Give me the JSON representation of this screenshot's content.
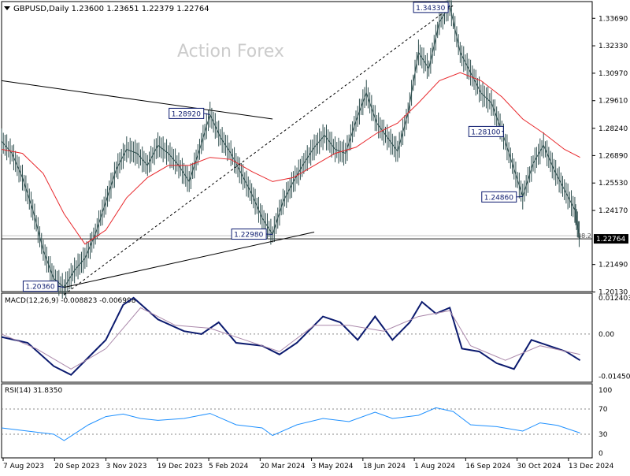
{
  "chart_data": [
    {
      "type": "candlestick",
      "panel": "price",
      "header": "GBPUSD,Daily  1.23600 1.23651 1.22379 1.22764",
      "watermark": "Action Forex",
      "ylim": [
        1.2015,
        1.3452
      ],
      "y_ticks": [
        "1.33690",
        "1.32330",
        "1.30970",
        "1.29610",
        "1.28240",
        "1.26890",
        "1.25530",
        "1.24170",
        "1.22764",
        "1.21490",
        "1.20130"
      ],
      "current_price": "1.22764",
      "fib_label": "38.2",
      "series": [
        {
          "name": "price",
          "color": "#2f4f4f"
        },
        {
          "name": "moving-average",
          "color": "#e8272b"
        }
      ],
      "price_path": [
        [
          0,
          1.276
        ],
        [
          6,
          1.27
        ],
        [
          12,
          1.258
        ],
        [
          18,
          1.242
        ],
        [
          24,
          1.222
        ],
        [
          30,
          1.208
        ],
        [
          36,
          1.2036
        ],
        [
          42,
          1.212
        ],
        [
          48,
          1.218
        ],
        [
          54,
          1.23
        ],
        [
          60,
          1.246
        ],
        [
          66,
          1.262
        ],
        [
          72,
          1.272
        ],
        [
          78,
          1.27
        ],
        [
          84,
          1.264
        ],
        [
          90,
          1.274
        ],
        [
          96,
          1.27
        ],
        [
          102,
          1.264
        ],
        [
          108,
          1.256
        ],
        [
          114,
          1.272
        ],
        [
          120,
          1.2892
        ],
        [
          126,
          1.278
        ],
        [
          132,
          1.27
        ],
        [
          138,
          1.26
        ],
        [
          144,
          1.25
        ],
        [
          150,
          1.238
        ],
        [
          156,
          1.2298
        ],
        [
          162,
          1.246
        ],
        [
          168,
          1.256
        ],
        [
          174,
          1.265
        ],
        [
          180,
          1.273
        ],
        [
          186,
          1.279
        ],
        [
          192,
          1.272
        ],
        [
          198,
          1.27
        ],
        [
          204,
          1.286
        ],
        [
          210,
          1.3
        ],
        [
          216,
          1.285
        ],
        [
          222,
          1.278
        ],
        [
          228,
          1.271
        ],
        [
          234,
          1.29
        ],
        [
          240,
          1.32
        ],
        [
          246,
          1.312
        ],
        [
          252,
          1.335
        ],
        [
          258,
          1.3433
        ],
        [
          264,
          1.32
        ],
        [
          270,
          1.31
        ],
        [
          276,
          1.3
        ],
        [
          282,
          1.295
        ],
        [
          288,
          1.281
        ],
        [
          294,
          1.265
        ],
        [
          300,
          1.2486
        ],
        [
          306,
          1.265
        ],
        [
          312,
          1.274
        ],
        [
          318,
          1.262
        ],
        [
          324,
          1.252
        ],
        [
          330,
          1.242
        ],
        [
          333,
          1.2276
        ]
      ],
      "ma_path": [
        [
          0,
          1.272
        ],
        [
          12,
          1.27
        ],
        [
          24,
          1.26
        ],
        [
          36,
          1.24
        ],
        [
          48,
          1.225
        ],
        [
          60,
          1.232
        ],
        [
          72,
          1.248
        ],
        [
          84,
          1.258
        ],
        [
          96,
          1.264
        ],
        [
          108,
          1.264
        ],
        [
          120,
          1.268
        ],
        [
          132,
          1.267
        ],
        [
          144,
          1.261
        ],
        [
          156,
          1.256
        ],
        [
          168,
          1.258
        ],
        [
          180,
          1.264
        ],
        [
          192,
          1.27
        ],
        [
          204,
          1.273
        ],
        [
          216,
          1.28
        ],
        [
          228,
          1.285
        ],
        [
          240,
          1.295
        ],
        [
          252,
          1.306
        ],
        [
          264,
          1.31
        ],
        [
          276,
          1.306
        ],
        [
          288,
          1.298
        ],
        [
          300,
          1.287
        ],
        [
          312,
          1.28
        ],
        [
          324,
          1.272
        ],
        [
          333,
          1.268
        ]
      ],
      "annotations": [
        {
          "label": "1.34330",
          "x": 258,
          "y": 1.3433
        },
        {
          "label": "1.28920",
          "x": 120,
          "y": 1.2892
        },
        {
          "label": "1.22980",
          "x": 156,
          "y": 1.2298
        },
        {
          "label": "1.20360",
          "x": 36,
          "y": 1.2036
        },
        {
          "label": "1.28100",
          "x": 288,
          "y": 1.281
        },
        {
          "label": "1.24860",
          "x": 300,
          "y": 1.2486
        }
      ],
      "trendlines": [
        {
          "style": "solid",
          "from": [
            0,
            1.306
          ],
          "to": [
            156,
            1.287
          ]
        },
        {
          "style": "solid",
          "from": [
            36,
            1.2036
          ],
          "to": [
            180,
            1.231
          ]
        },
        {
          "style": "dashed",
          "from": [
            36,
            1.2
          ],
          "to": [
            260,
            1.3433
          ]
        }
      ]
    },
    {
      "type": "line",
      "panel": "macd",
      "header": "MACD(12,26,9) -0.008823 -0.006998",
      "y_ticks": [
        "0.012403",
        "0.00",
        "-0.014502"
      ],
      "ylim": [
        -0.0165,
        0.014
      ],
      "series": [
        {
          "name": "macd",
          "color": "#0b1a6e",
          "values": [
            [
              0,
              -0.001
            ],
            [
              15,
              -0.003
            ],
            [
              30,
              -0.011
            ],
            [
              40,
              -0.014
            ],
            [
              50,
              -0.008
            ],
            [
              60,
              -0.002
            ],
            [
              70,
              0.01
            ],
            [
              76,
              0.0124
            ],
            [
              90,
              0.005
            ],
            [
              105,
              0.001
            ],
            [
              115,
              0.0
            ],
            [
              125,
              0.004
            ],
            [
              135,
              -0.003
            ],
            [
              150,
              -0.004
            ],
            [
              160,
              -0.007
            ],
            [
              170,
              -0.003
            ],
            [
              185,
              0.006
            ],
            [
              195,
              0.004
            ],
            [
              205,
              -0.002
            ],
            [
              215,
              0.006
            ],
            [
              225,
              -0.002
            ],
            [
              235,
              0.004
            ],
            [
              242,
              0.011
            ],
            [
              250,
              0.007
            ],
            [
              258,
              0.009
            ],
            [
              265,
              -0.005
            ],
            [
              275,
              -0.006
            ],
            [
              285,
              -0.01
            ],
            [
              295,
              -0.012
            ],
            [
              305,
              -0.002
            ],
            [
              315,
              -0.004
            ],
            [
              325,
              -0.006
            ],
            [
              333,
              -0.009
            ]
          ]
        },
        {
          "name": "signal",
          "color": "#aa88aa",
          "values": [
            [
              0,
              0.0
            ],
            [
              20,
              -0.005
            ],
            [
              40,
              -0.012
            ],
            [
              60,
              -0.005
            ],
            [
              80,
              0.009
            ],
            [
              100,
              0.003
            ],
            [
              120,
              0.002
            ],
            [
              140,
              -0.002
            ],
            [
              160,
              -0.006
            ],
            [
              180,
              0.003
            ],
            [
              200,
              0.003
            ],
            [
              220,
              0.001
            ],
            [
              240,
              0.006
            ],
            [
              258,
              0.008
            ],
            [
              270,
              -0.004
            ],
            [
              290,
              -0.009
            ],
            [
              310,
              -0.004
            ],
            [
              333,
              -0.007
            ]
          ]
        }
      ]
    },
    {
      "type": "line",
      "panel": "rsi",
      "header": "RSI(14) 31.8350",
      "y_ticks": [
        "100",
        "70",
        "30",
        "0"
      ],
      "ylim": [
        0,
        100
      ],
      "series": [
        {
          "name": "rsi",
          "color": "#1e90ff",
          "values": [
            [
              0,
              40
            ],
            [
              15,
              35
            ],
            [
              30,
              30
            ],
            [
              36,
              20
            ],
            [
              50,
              45
            ],
            [
              60,
              58
            ],
            [
              70,
              62
            ],
            [
              80,
              55
            ],
            [
              90,
              52
            ],
            [
              105,
              55
            ],
            [
              120,
              63
            ],
            [
              135,
              45
            ],
            [
              150,
              40
            ],
            [
              156,
              28
            ],
            [
              170,
              45
            ],
            [
              185,
              55
            ],
            [
              200,
              50
            ],
            [
              215,
              65
            ],
            [
              225,
              55
            ],
            [
              240,
              60
            ],
            [
              250,
              72
            ],
            [
              260,
              66
            ],
            [
              270,
              45
            ],
            [
              285,
              42
            ],
            [
              300,
              35
            ],
            [
              310,
              48
            ],
            [
              320,
              44
            ],
            [
              333,
              32
            ]
          ]
        }
      ]
    }
  ],
  "x_axis_labels": [
    "7 Aug 2023",
    "20 Sep 2023",
    "3 Nov 2023",
    "19 Dec 2023",
    "5 Feb 2024",
    "20 Mar 2024",
    "3 May 2024",
    "18 Jun 2024",
    "1 Aug 2024",
    "16 Sep 2024",
    "30 Oct 2024",
    "13 Dec 2024"
  ]
}
